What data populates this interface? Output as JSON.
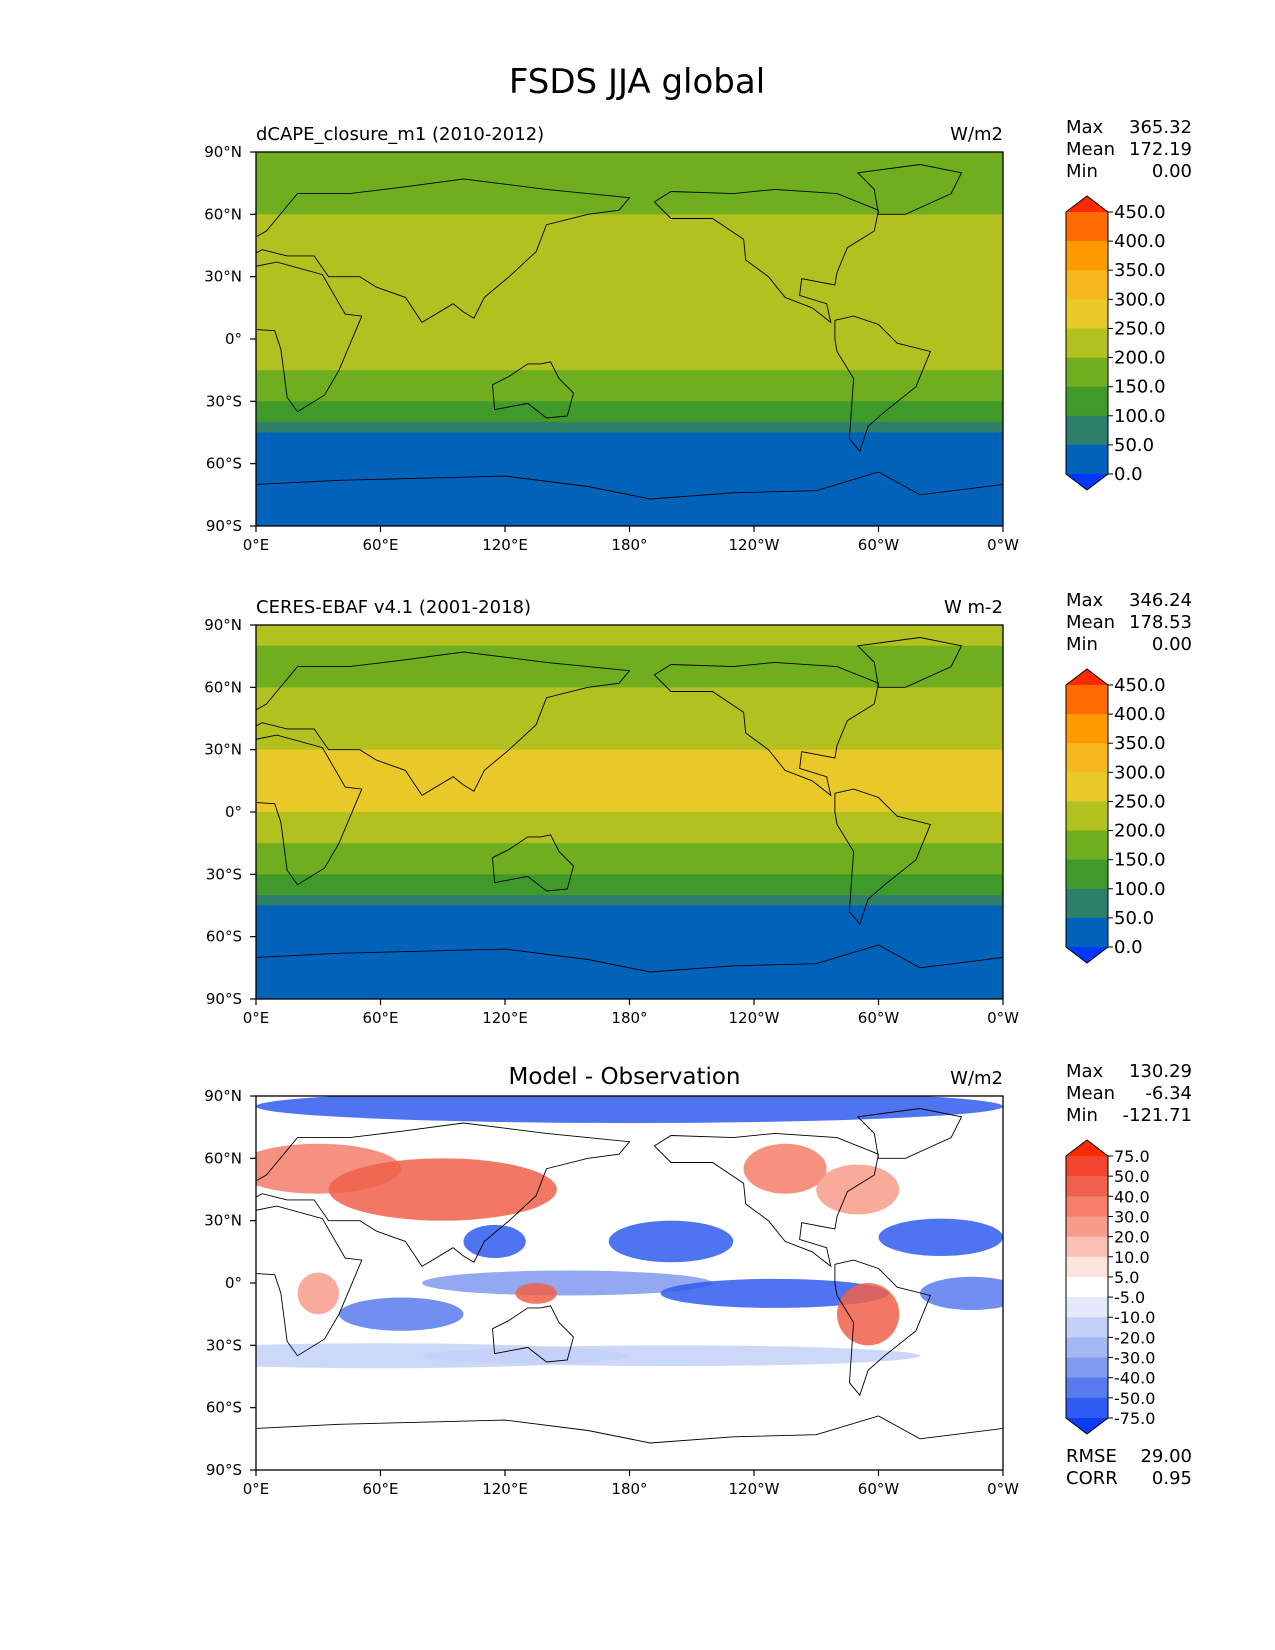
{
  "figure": {
    "title": "FSDS JJA global"
  },
  "chart_data": [
    {
      "type": "heatmap",
      "title": "dCAPE_closure_m1 (2010-2012)",
      "units": "W/m2",
      "stats": {
        "labels": [
          "Max",
          "Mean",
          "Min"
        ],
        "values": [
          "365.32",
          "172.19",
          "0.00"
        ]
      },
      "x_ticks": [
        "0°E",
        "60°E",
        "120°E",
        "180°",
        "120°W",
        "60°W",
        "0°W"
      ],
      "y_ticks": [
        "90°N",
        "60°N",
        "30°N",
        "0°",
        "30°S",
        "60°S",
        "90°S"
      ],
      "xlim": [
        0,
        360
      ],
      "ylim": [
        -90,
        90
      ],
      "colorbar": {
        "labels": [
          "450.0",
          "400.0",
          "350.0",
          "300.0",
          "250.0",
          "200.0",
          "150.0",
          "100.0",
          "50.0",
          "0.0"
        ],
        "colors": [
          "#ff2a00",
          "#ff6a00",
          "#ff9a00",
          "#f6b81c",
          "#e8c928",
          "#b2c11f",
          "#6fae1f",
          "#3f9a2a",
          "#2d7f6a",
          "#0062b8",
          "#0038ff"
        ]
      },
      "zonal_profile": {
        "lat": [
          90,
          80,
          70,
          60,
          45,
          30,
          15,
          0,
          -15,
          -30,
          -40,
          -45,
          -55,
          -70,
          -85,
          -90
        ],
        "values": [
          180,
          160,
          170,
          190,
          230,
          250,
          230,
          200,
          200,
          150,
          90,
          45,
          25,
          20,
          10,
          0
        ]
      }
    },
    {
      "type": "heatmap",
      "title": "CERES-EBAF v4.1 (2001-2018)",
      "units": "W m-2",
      "stats": {
        "labels": [
          "Max",
          "Mean",
          "Min"
        ],
        "values": [
          "346.24",
          "178.53",
          "0.00"
        ]
      },
      "x_ticks": [
        "0°E",
        "60°E",
        "120°E",
        "180°",
        "120°W",
        "60°W",
        "0°W"
      ],
      "y_ticks": [
        "90°N",
        "60°N",
        "30°N",
        "0°",
        "30°S",
        "60°S",
        "90°S"
      ],
      "xlim": [
        0,
        360
      ],
      "ylim": [
        -90,
        90
      ],
      "colorbar": {
        "labels": [
          "450.0",
          "400.0",
          "350.0",
          "300.0",
          "250.0",
          "200.0",
          "150.0",
          "100.0",
          "50.0",
          "0.0"
        ],
        "colors": [
          "#ff2a00",
          "#ff6a00",
          "#ff9a00",
          "#f6b81c",
          "#e8c928",
          "#b2c11f",
          "#6fae1f",
          "#3f9a2a",
          "#2d7f6a",
          "#0062b8",
          "#0038ff"
        ]
      },
      "zonal_profile": {
        "lat": [
          90,
          80,
          70,
          60,
          45,
          30,
          15,
          0,
          -15,
          -30,
          -40,
          -45,
          -55,
          -70,
          -85,
          -90
        ],
        "values": [
          215,
          190,
          180,
          185,
          230,
          265,
          260,
          240,
          210,
          160,
          95,
          45,
          25,
          20,
          10,
          0
        ]
      }
    },
    {
      "type": "heatmap",
      "title": "Model - Observation",
      "units": "W/m2",
      "stats": {
        "labels": [
          "Max",
          "Mean",
          "Min"
        ],
        "values": [
          "130.29",
          "-6.34",
          "-121.71"
        ]
      },
      "x_ticks": [
        "0°E",
        "60°E",
        "120°E",
        "180°",
        "120°W",
        "60°W",
        "0°W"
      ],
      "y_ticks": [
        "90°N",
        "60°N",
        "30°N",
        "0°",
        "30°S",
        "60°S",
        "90°S"
      ],
      "xlim": [
        0,
        360
      ],
      "ylim": [
        -90,
        90
      ],
      "colorbar": {
        "labels": [
          "75.0",
          "50.0",
          "40.0",
          "30.0",
          "20.0",
          "10.0",
          "5.0",
          "-5.0",
          "-10.0",
          "-20.0",
          "-30.0",
          "-40.0",
          "-50.0",
          "-75.0"
        ],
        "colors": [
          "#ff2a00",
          "#f2452e",
          "#f0604a",
          "#f47e68",
          "#f79c8a",
          "#fac0b3",
          "#fde3dc",
          "#ffffff",
          "#e3e9fb",
          "#c3d1f7",
          "#a3b8f3",
          "#7f9af0",
          "#577bed",
          "#2f5cf0",
          "#0a3cf5"
        ]
      },
      "summary": {
        "labels": [
          "RMSE",
          "CORR"
        ],
        "values": [
          "29.00",
          "0.95"
        ]
      }
    }
  ]
}
